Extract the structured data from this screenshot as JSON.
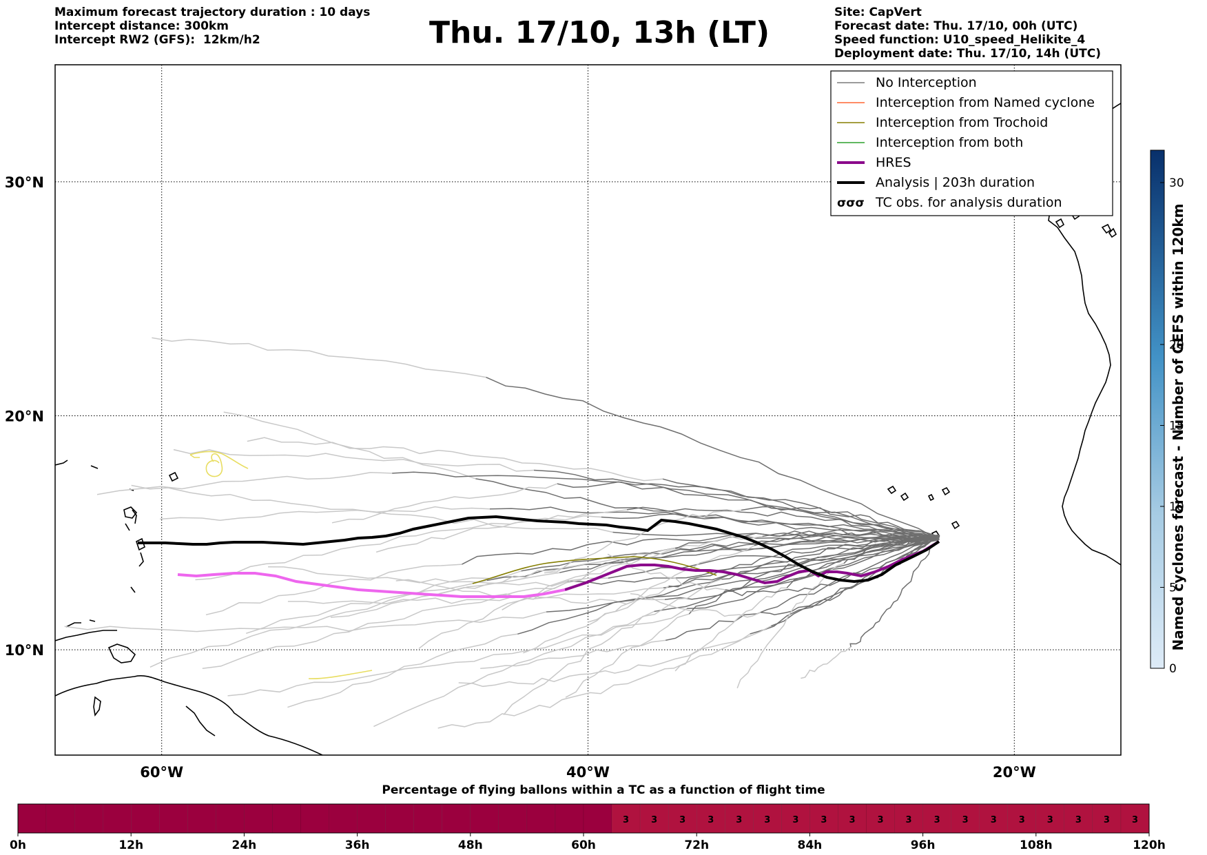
{
  "header": {
    "left": [
      "Maximum forecast trajectory duration : 10 days",
      "Intercept distance: 300km",
      "Intercept RW2 (GFS):  12km/h2"
    ],
    "title": "Thu. 17/10, 13h (LT)",
    "right": [
      "Site: CapVert",
      "Forecast date: Thu. 17/10, 00h (UTC)",
      "Speed function: U10_speed_Helikite_4",
      "Deployment date: Thu. 17/10, 14h (UTC)"
    ]
  },
  "map": {
    "lon_range": [
      -65,
      -15
    ],
    "lat_range": [
      5.5,
      35
    ],
    "meridians": [
      -60,
      -40,
      -20
    ],
    "parallels": [
      10,
      20,
      30
    ],
    "lon_labels": [
      "60°W",
      "40°W",
      "20°W"
    ],
    "lat_labels": [
      "10°N",
      "20°N",
      "30°N"
    ],
    "colors": {
      "no_interception": "#6e6e6e",
      "no_interception_faded": "#c8c8c8",
      "named_cyclone": "#ff6633",
      "trochoid": "#857e00",
      "both": "#2ca02c",
      "hres": "#8b0a8b",
      "hres_faded": "#ee66ee",
      "analysis": "#000000",
      "tc_obs": "#e8dd60"
    }
  },
  "legend": [
    {
      "label": "No Interception",
      "style": "thin",
      "color": "#7a7a7a"
    },
    {
      "label": "Interception from Named cyclone",
      "style": "thin",
      "color": "#ff6633"
    },
    {
      "label": "Interception from Trochoid",
      "style": "thin",
      "color": "#857e00"
    },
    {
      "label": "Interception from both",
      "style": "thin",
      "color": "#2ca02c"
    },
    {
      "label": "HRES",
      "style": "thick",
      "color": "#8b0a8b"
    },
    {
      "label": "Analysis | 203h duration",
      "style": "thick",
      "color": "#000000"
    },
    {
      "label": "TC obs. for analysis duration",
      "style": "symbol",
      "color": "#000000"
    }
  ],
  "colorbar": {
    "label": "Named cyclones forecast - Number of GEFS within 120km",
    "ticks": [
      "0",
      "5",
      "10",
      "15",
      "20",
      "30"
    ],
    "tick_values": [
      0,
      5,
      10,
      15,
      20,
      30
    ],
    "max": 32
  },
  "flight_bar": {
    "title": "Percentage of flying ballons within a TC as a function of flight time",
    "ticks": [
      "0h",
      "12h",
      "24h",
      "36h",
      "48h",
      "60h",
      "72h",
      "84h",
      "96h",
      "108h",
      "120h"
    ],
    "hours_per_cell": 3,
    "total_hours": 120,
    "cell_values": [
      0,
      0,
      0,
      0,
      0,
      0,
      0,
      0,
      0,
      0,
      0,
      0,
      0,
      0,
      0,
      0,
      0,
      0,
      0,
      0,
      0,
      3,
      3,
      3,
      3,
      3,
      3,
      3,
      3,
      3,
      3,
      3,
      3,
      3,
      3,
      3,
      3,
      3,
      3,
      3
    ],
    "colors": {
      "zero": "#9b003e",
      "nonzero": "#b0123f"
    }
  }
}
